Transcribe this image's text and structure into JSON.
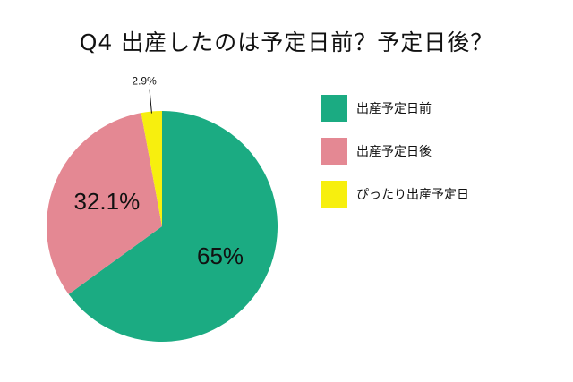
{
  "title": "Q4 出産したのは予定日前？予定日後？",
  "chart_data": {
    "type": "pie",
    "title": "Q4 出産したのは予定日前？予定日後？",
    "categories": [
      "出産予定日前",
      "出産予定日後",
      "ぴったり出産予定日"
    ],
    "values": [
      65,
      32.1,
      2.9
    ],
    "value_labels": [
      "65%",
      "32.1%",
      "2.9%"
    ],
    "colors": [
      "#1bab82",
      "#e48893",
      "#f7ef0e"
    ],
    "legend_position": "right",
    "start_angle_deg": 0,
    "direction": "clockwise"
  }
}
